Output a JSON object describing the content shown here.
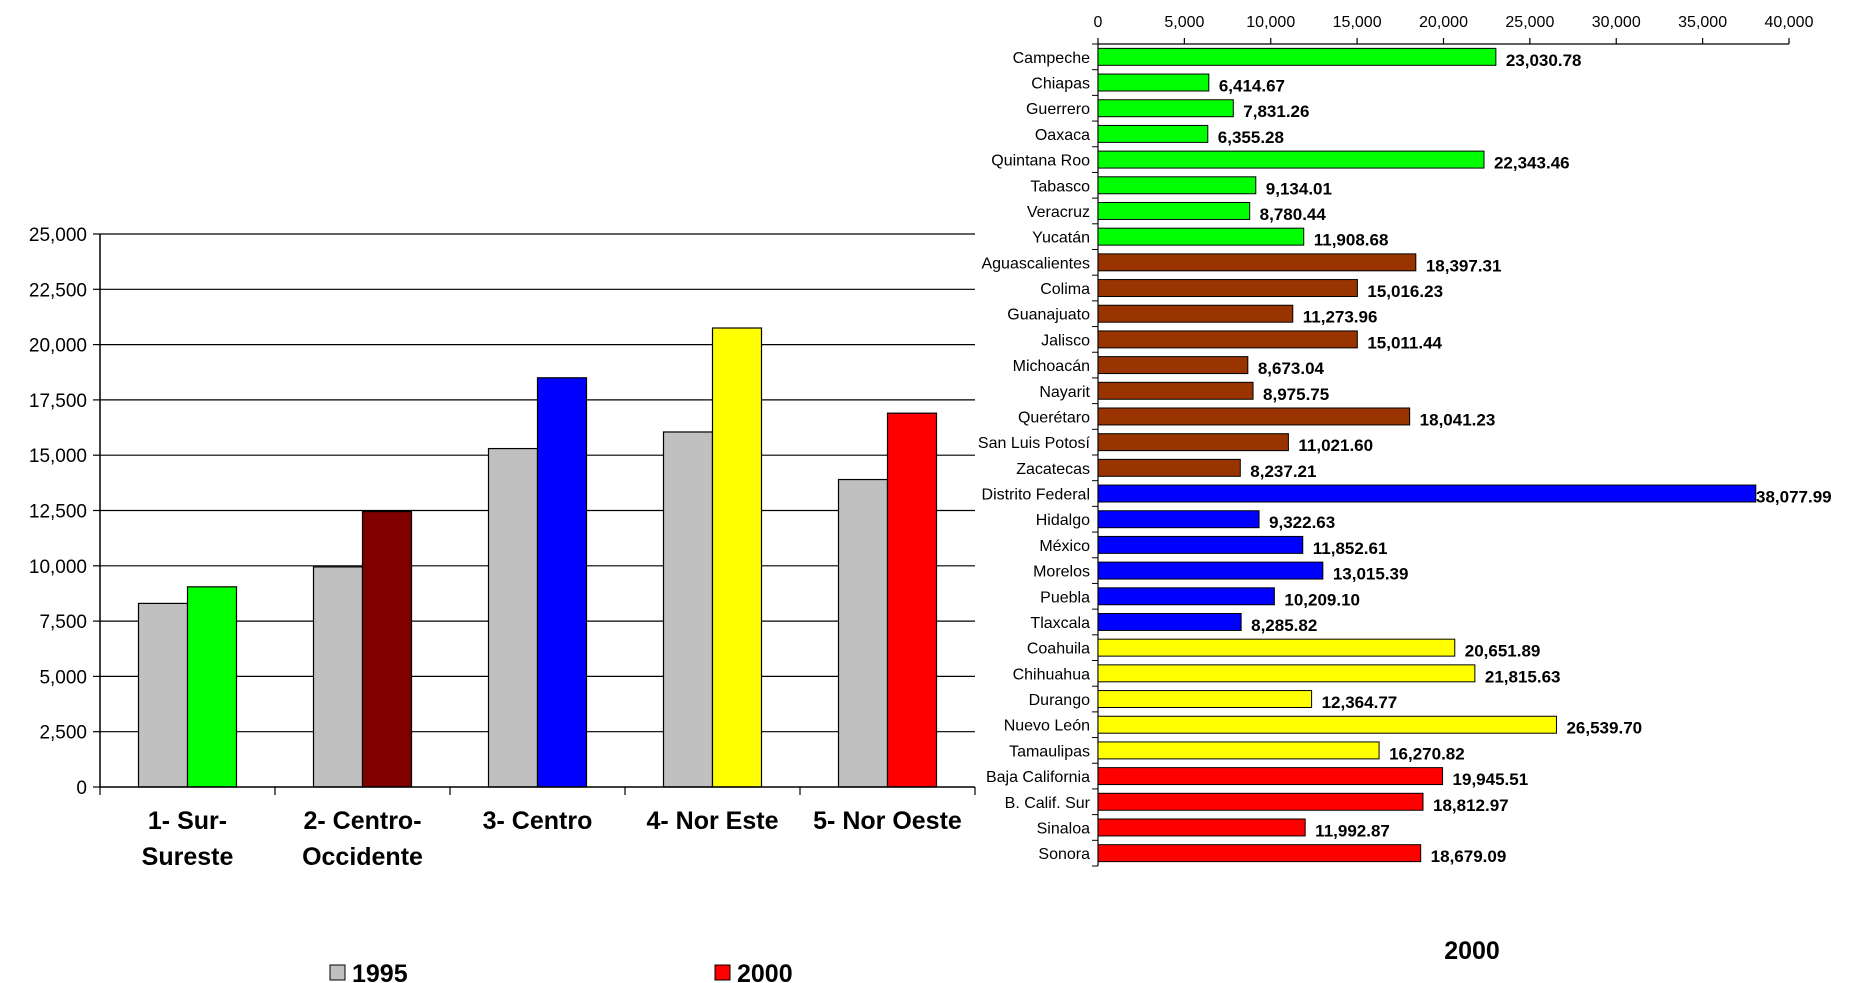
{
  "chart_data": [
    {
      "type": "bar",
      "categories": [
        [
          "1- Sur-",
          "Sureste"
        ],
        [
          "2- Centro-",
          "Occidente"
        ],
        [
          "3- Centro"
        ],
        [
          "4- Nor Este"
        ],
        [
          "5- Nor Oeste"
        ]
      ],
      "series": [
        {
          "name": "1995",
          "values": [
            8300,
            9950,
            15300,
            16050,
            13900
          ],
          "colors": [
            "#c0c0c0",
            "#c0c0c0",
            "#c0c0c0",
            "#c0c0c0",
            "#c0c0c0"
          ]
        },
        {
          "name": "2000",
          "values": [
            9050,
            12450,
            18500,
            20750,
            16900
          ],
          "colors": [
            "#00ff00",
            "#800000",
            "#0000ff",
            "#ffff00",
            "#ff0000"
          ]
        }
      ],
      "ylim": [
        0,
        25000
      ],
      "yticks": [
        "0",
        "2,500",
        "5,000",
        "7,500",
        "10,000",
        "12,500",
        "15,000",
        "17,500",
        "20,000",
        "22,500",
        "25,000"
      ],
      "grid": true,
      "legend": {
        "position": "bottom",
        "items": [
          {
            "label": "1995",
            "color": "#c0c0c0"
          },
          {
            "label": "2000",
            "color": "#ff0000"
          }
        ]
      }
    },
    {
      "type": "bar",
      "orientation": "horizontal",
      "xlabel": "2000",
      "xlim": [
        0,
        40000
      ],
      "xticks": [
        "0",
        "5,000",
        "10,000",
        "15,000",
        "20,000",
        "25,000",
        "30,000",
        "35,000",
        "40,000"
      ],
      "grid": false,
      "categories": [
        "Campeche",
        "Chiapas",
        "Guerrero",
        "Oaxaca",
        "Quintana Roo",
        "Tabasco",
        "Veracruz",
        "Yucatán",
        "Aguascalientes",
        "Colima",
        "Guanajuato",
        "Jalisco",
        "Michoacán",
        "Nayarit",
        "Querétaro",
        "San Luis Potosí",
        "Zacatecas",
        "Distrito Federal",
        "Hidalgo",
        "México",
        "Morelos",
        "Puebla",
        "Tlaxcala",
        "Coahuila",
        "Chihuahua",
        "Durango",
        "Nuevo León",
        "Tamaulipas",
        "Baja California",
        "B. Calif. Sur",
        "Sinaloa",
        "Sonora"
      ],
      "values": [
        23030.78,
        6414.67,
        7831.26,
        6355.28,
        22343.46,
        9134.01,
        8780.44,
        11908.68,
        18397.31,
        15016.23,
        11273.96,
        15011.44,
        8673.04,
        8975.75,
        18041.23,
        11021.6,
        8237.21,
        38077.99,
        9322.63,
        11852.61,
        13015.39,
        10209.1,
        8285.82,
        20651.89,
        21815.63,
        12364.77,
        26539.7,
        16270.82,
        19945.51,
        18812.97,
        11992.87,
        18679.09
      ],
      "labels": [
        "23,030.78",
        "6,414.67",
        "7,831.26",
        "6,355.28",
        "22,343.46",
        "9,134.01",
        "8,780.44",
        "11,908.68",
        "18,397.31",
        "15,016.23",
        "11,273.96",
        "15,011.44",
        "8,673.04",
        "8,975.75",
        "18,041.23",
        "11,021.60",
        "8,237.21",
        "38,077.99",
        "9,322.63",
        "11,852.61",
        "13,015.39",
        "10,209.10",
        "8,285.82",
        "20,651.89",
        "21,815.63",
        "12,364.77",
        "26,539.70",
        "16,270.82",
        "19,945.51",
        "18,812.97",
        "11,992.87",
        "18,679.09"
      ],
      "colors": [
        "#00ff00",
        "#00ff00",
        "#00ff00",
        "#00ff00",
        "#00ff00",
        "#00ff00",
        "#00ff00",
        "#00ff00",
        "#993300",
        "#993300",
        "#993300",
        "#993300",
        "#993300",
        "#993300",
        "#993300",
        "#993300",
        "#993300",
        "#0000ff",
        "#0000ff",
        "#0000ff",
        "#0000ff",
        "#0000ff",
        "#0000ff",
        "#ffff00",
        "#ffff00",
        "#ffff00",
        "#ffff00",
        "#ffff00",
        "#ff0000",
        "#ff0000",
        "#ff0000",
        "#ff0000"
      ]
    }
  ]
}
